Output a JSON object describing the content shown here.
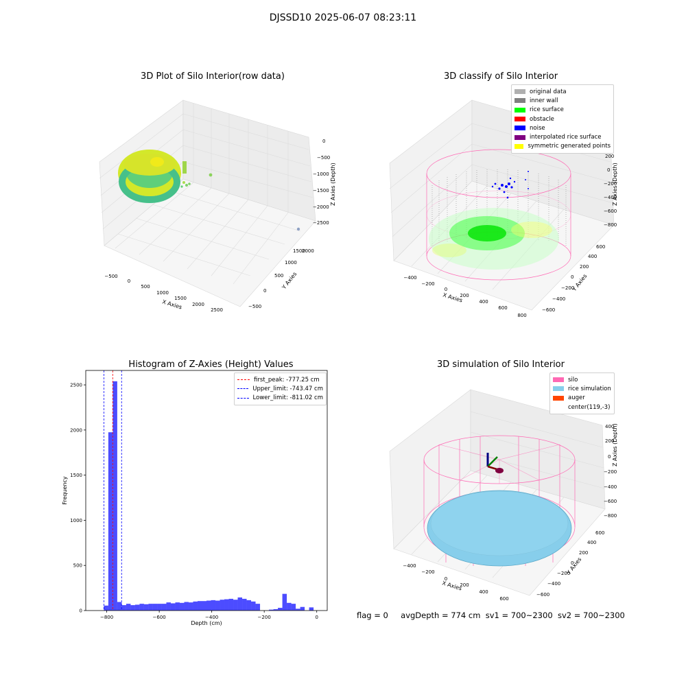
{
  "suptitle": "DJSSD10 2025-06-07 08:23:11",
  "footer": {
    "flag": "flag = 0",
    "avg_depth": "avgDepth = 774 cm",
    "sv1": "sv1 = 700~2300",
    "sv2": "sv2 = 700~2300"
  },
  "colors": {
    "rice_surface": "#00ff00",
    "inner_wall": "#808080",
    "original_data": "#b0b0b0",
    "obstacle": "#ff0000",
    "noise": "#0000ff",
    "interpolated": "#800080",
    "symmetric": "#ffff00",
    "silo": "#ff69b4",
    "rice_sim": "#87ceeb",
    "auger": "#ff4500",
    "hist_bar": "#0000ff"
  },
  "chart_data": [
    {
      "type": "scatter",
      "projection": "3d",
      "title": "3D Plot of Silo Interior(row data)",
      "xlabel": "X Axies",
      "ylabel": "Y Axies",
      "zlabel": "Z Axies (Depth)",
      "x_ticks": [
        "−500",
        "0",
        "500",
        "1000",
        "1500",
        "2000",
        "2500"
      ],
      "y_ticks": [
        "−500",
        "0",
        "500",
        "1000",
        "1500",
        "2000"
      ],
      "z_ticks": [
        "0",
        "−500",
        "−1000",
        "−1500",
        "−2000",
        "−2500"
      ],
      "grid": true
    },
    {
      "type": "scatter",
      "projection": "3d",
      "title": "3D classify of Silo Interior",
      "xlabel": "X Axies",
      "ylabel": "Y Axies",
      "zlabel": "Z Axies (Depth)",
      "x_ticks": [
        "−400",
        "−200",
        "0",
        "200",
        "400",
        "600",
        "800"
      ],
      "y_ticks": [
        "−600",
        "−400",
        "−200",
        "0",
        "200",
        "400",
        "600"
      ],
      "z_ticks": [
        "200",
        "0",
        "−200",
        "−400",
        "−600",
        "−800"
      ],
      "legend": {
        "placement": "top-right",
        "entries": [
          {
            "label": "original data",
            "color": "#b0b0b0"
          },
          {
            "label": "inner wall",
            "color": "#808080"
          },
          {
            "label": "rice surface",
            "color": "#00ff00"
          },
          {
            "label": "obstacle",
            "color": "#ff0000"
          },
          {
            "label": "noise",
            "color": "#0000ff"
          },
          {
            "label": "interpolated rice surface",
            "color": "#800080"
          },
          {
            "label": "symmetric generated points",
            "color": "#ffff00"
          }
        ]
      },
      "grid": true
    },
    {
      "type": "bar",
      "title": "Histogram of Z-Axies (Height) Values",
      "xlabel": "Depth (cm)",
      "ylabel": "Frequency",
      "xlim": [
        -880,
        40
      ],
      "ylim": [
        0,
        2660
      ],
      "x_ticks": [
        -800,
        -600,
        -400,
        -200,
        0
      ],
      "x_tick_labels": [
        "−800",
        "−600",
        "−400",
        "−200",
        "0"
      ],
      "y_ticks": [
        0,
        500,
        1000,
        1500,
        2000,
        2500
      ],
      "y_tick_labels": [
        "0",
        "500",
        "1000",
        "1500",
        "2000",
        "2500"
      ],
      "bin_width": 17,
      "bin_starts": [
        -811,
        -794,
        -777,
        -760,
        -743,
        -726,
        -709,
        -692,
        -675,
        -658,
        -641,
        -624,
        -607,
        -590,
        -573,
        -556,
        -539,
        -522,
        -505,
        -488,
        -471,
        -454,
        -437,
        -420,
        -403,
        -386,
        -369,
        -352,
        -335,
        -318,
        -301,
        -284,
        -267,
        -250,
        -233,
        -216,
        -199,
        -182,
        -165,
        -148,
        -131,
        -114,
        -97,
        -80,
        -63,
        -46,
        -29,
        -12
      ],
      "values": [
        55,
        1975,
        2540,
        95,
        60,
        75,
        60,
        65,
        75,
        70,
        75,
        75,
        75,
        75,
        90,
        80,
        90,
        85,
        95,
        90,
        100,
        105,
        105,
        110,
        115,
        110,
        120,
        125,
        130,
        120,
        145,
        130,
        115,
        100,
        75,
        0,
        0,
        10,
        15,
        30,
        185,
        85,
        75,
        20,
        40,
        0,
        35,
        0
      ],
      "vlines": [
        {
          "label": "first_peak: -777.25 cm",
          "x": -777.25,
          "color": "#ff0000"
        },
        {
          "label": "Upper_limit: -743.47 cm",
          "x": -743.47,
          "color": "#0000ff"
        },
        {
          "label": "Lower_limit: -811.02 cm",
          "x": -811.02,
          "color": "#0000ff"
        }
      ],
      "legend_placement": "top-right",
      "grid": false
    },
    {
      "type": "surface",
      "projection": "3d",
      "title": "3D simulation of Silo Interior",
      "xlabel": "X Axies",
      "ylabel": "Y Axies",
      "zlabel": "Z Axies (Depth)",
      "x_ticks": [
        "−400",
        "−200",
        "0",
        "200",
        "400",
        "600"
      ],
      "y_ticks": [
        "−600",
        "−400",
        "−200",
        "0",
        "200",
        "400",
        "600"
      ],
      "z_ticks": [
        "400",
        "200",
        "0",
        "−200",
        "−400",
        "−600",
        "−800"
      ],
      "legend": {
        "placement": "top-right",
        "entries": [
          {
            "label": "silo",
            "color": "#ff69b4"
          },
          {
            "label": "rice simulation",
            "color": "#87ceeb"
          },
          {
            "label": "auger",
            "color": "#ff4500"
          },
          {
            "label": "center(119,-3)",
            "color": ""
          }
        ]
      },
      "grid": true
    }
  ]
}
